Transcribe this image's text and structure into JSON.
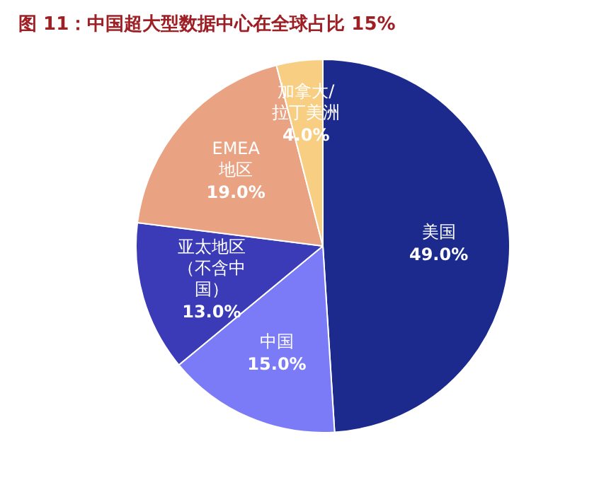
{
  "chart_data": {
    "type": "pie",
    "title": "图 11：中国超大型数据中心在全球占比 15%",
    "categories": [
      "美国",
      "中国",
      "亚太地区（不含中国）",
      "EMEA地区",
      "加拿大/拉丁美洲"
    ],
    "values": [
      49,
      15,
      13,
      19,
      4
    ],
    "value_labels": [
      "49.0%",
      "15.0%",
      "13.0%",
      "19.0%",
      "4.0%"
    ],
    "colors": [
      "#1b2a8c",
      "#7b7bf7",
      "#3b3bb8",
      "#e9a282",
      "#f8cf82"
    ],
    "legend": false
  }
}
